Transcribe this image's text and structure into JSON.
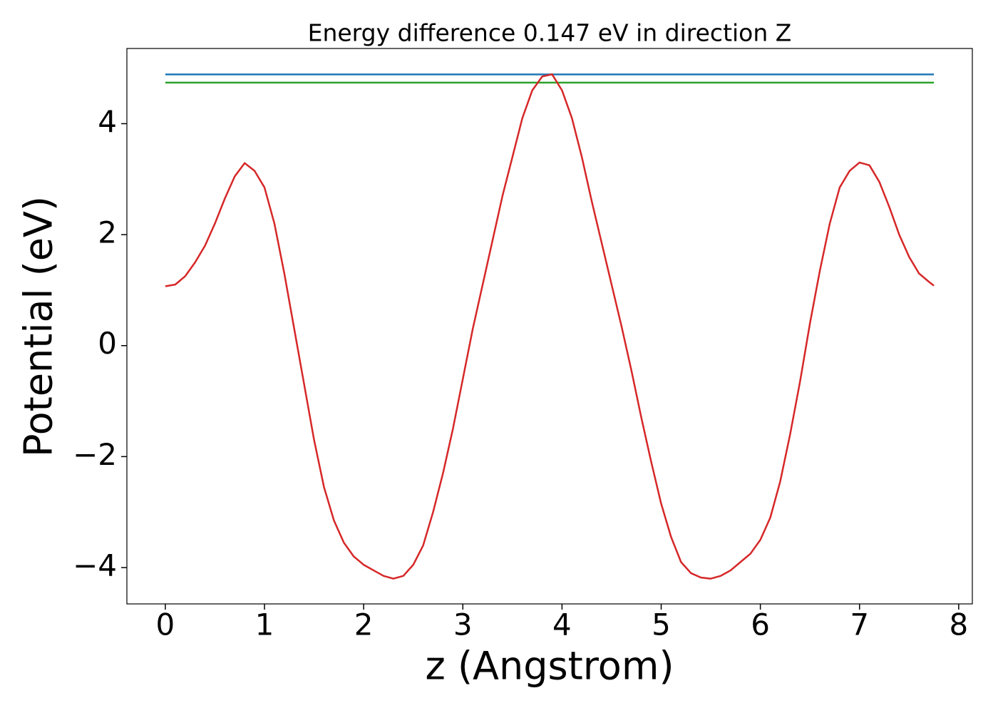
{
  "chart_data": {
    "type": "line",
    "title": "Energy difference 0.147 eV in direction Z",
    "x_label": "z (Angstrom)",
    "y_label": "Potential (eV)",
    "xlim": [
      -0.3875,
      8.1375
    ],
    "ylim": [
      -4.655,
      5.355
    ],
    "xticks": [
      0,
      1,
      2,
      3,
      4,
      5,
      6,
      7,
      8
    ],
    "yticks": [
      {
        "value": -4,
        "label": "−4"
      },
      {
        "value": -2,
        "label": "−2"
      },
      0,
      2,
      4
    ],
    "grid": false,
    "series": [
      {
        "color": "#1f77b4",
        "x": [
          0,
          7.75
        ],
        "values": [
          4.887,
          4.887
        ]
      },
      {
        "color": "#2ca02c",
        "x": [
          0,
          7.75
        ],
        "values": [
          4.74,
          4.74
        ]
      },
      {
        "color": "#d62728",
        "x": [
          0,
          0.1,
          0.2,
          0.3,
          0.4,
          0.5,
          0.6,
          0.7,
          0.8,
          0.9,
          1.0,
          1.1,
          1.2,
          1.3,
          1.4,
          1.5,
          1.6,
          1.7,
          1.8,
          1.9,
          2.0,
          2.1,
          2.2,
          2.3,
          2.4,
          2.5,
          2.6,
          2.7,
          2.8,
          2.9,
          3.0,
          3.1,
          3.2,
          3.3,
          3.4,
          3.5,
          3.6,
          3.7,
          3.8,
          3.9,
          4.0,
          4.1,
          4.2,
          4.3,
          4.4,
          4.5,
          4.6,
          4.7,
          4.8,
          4.9,
          5.0,
          5.1,
          5.2,
          5.3,
          5.4,
          5.5,
          5.6,
          5.7,
          5.8,
          5.9,
          6.0,
          6.1,
          6.2,
          6.3,
          6.4,
          6.5,
          6.6,
          6.7,
          6.8,
          6.9,
          7.0,
          7.1,
          7.2,
          7.3,
          7.4,
          7.5,
          7.6,
          7.7,
          7.75
        ],
        "values": [
          1.07,
          1.1,
          1.25,
          1.5,
          1.8,
          2.2,
          2.65,
          3.05,
          3.29,
          3.15,
          2.85,
          2.2,
          1.3,
          0.3,
          -0.7,
          -1.7,
          -2.55,
          -3.15,
          -3.55,
          -3.8,
          -3.95,
          -4.05,
          -4.15,
          -4.2,
          -4.15,
          -3.95,
          -3.6,
          -3.0,
          -2.3,
          -1.5,
          -0.6,
          0.3,
          1.1,
          1.9,
          2.7,
          3.4,
          4.1,
          4.6,
          4.85,
          4.89,
          4.6,
          4.1,
          3.4,
          2.6,
          1.85,
          1.1,
          0.35,
          -0.45,
          -1.3,
          -2.1,
          -2.85,
          -3.45,
          -3.9,
          -4.1,
          -4.18,
          -4.2,
          -4.15,
          -4.05,
          -3.9,
          -3.75,
          -3.5,
          -3.1,
          -2.45,
          -1.6,
          -0.65,
          0.4,
          1.35,
          2.2,
          2.85,
          3.15,
          3.3,
          3.25,
          2.95,
          2.5,
          2.0,
          1.6,
          1.3,
          1.15,
          1.08
        ]
      }
    ]
  }
}
